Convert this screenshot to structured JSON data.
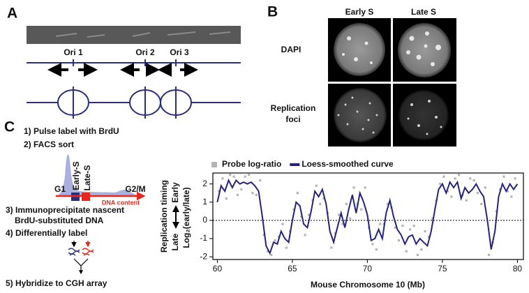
{
  "panel_a": {
    "label": "A",
    "origins": [
      "Ori 1",
      "Ori 2",
      "Ori 3"
    ]
  },
  "panel_b": {
    "label": "B",
    "columns": [
      "Early S",
      "Late S"
    ],
    "rows": [
      [
        "DAPI"
      ],
      [
        "Replication",
        "foci"
      ]
    ]
  },
  "panel_c": {
    "label": "C",
    "steps": [
      "1) Pulse label with BrdU",
      "2) FACS sort",
      "3) Immunoprecipitate nascent",
      "BrdU-substituted DNA",
      "4) Differentially label",
      "5) Hybridize to CGH array"
    ],
    "facs": {
      "phases": [
        "G1",
        "Early-S",
        "Late-S",
        "G2/M"
      ],
      "axis_label": "DNA content"
    }
  },
  "chart_data": {
    "type": "line",
    "x_label": "Mouse Chromosome 10 (Mb)",
    "y_label": "Replication timing",
    "y_label_ends": [
      "Late",
      "Early"
    ],
    "y_sublabel": "Log₂(early/late)",
    "xlim": [
      59.7,
      80.4
    ],
    "xticks": [
      60,
      65,
      70,
      75,
      80
    ],
    "ylim": [
      -2.15,
      2.6
    ],
    "yticks": [
      -2,
      -1,
      0,
      1,
      2
    ],
    "reference_line": 0,
    "legend": "top",
    "series": [
      {
        "name": "Probe log-ratio",
        "type": "scatter",
        "color": "#b4b4b4",
        "x": [
          60.1,
          60.6,
          61.1,
          61.6,
          62.1,
          62.6,
          63.1,
          63.6,
          64.1,
          64.6,
          65.1,
          65.6,
          66.1,
          66.6,
          67.1,
          67.6,
          68.1,
          68.6,
          69.1,
          69.6,
          70.1,
          70.6,
          71.1,
          71.6,
          72.1,
          72.6,
          73.1,
          73.6,
          74.1,
          74.6,
          75.1,
          75.6,
          76.1,
          76.6,
          77.1,
          77.6,
          78.1,
          78.6,
          79.1,
          79.6,
          60.35,
          60.85,
          61.35,
          61.85,
          62.35,
          62.85,
          63.35,
          63.85,
          64.35,
          64.85,
          65.35,
          65.85,
          66.35,
          66.85,
          67.35,
          67.85,
          68.35,
          68.85,
          69.35,
          69.85,
          70.35,
          70.85,
          71.35,
          71.85,
          72.35,
          72.85,
          73.35,
          73.85,
          74.35,
          74.85,
          75.35,
          75.85,
          76.35,
          76.85,
          77.35,
          77.85,
          78.35,
          78.85,
          79.35,
          79.85
        ],
        "values": [
          1.6,
          1.2,
          2.4,
          1.7,
          2.5,
          1.4,
          -0.8,
          -1.9,
          -0.9,
          -1.5,
          0.6,
          0.2,
          0.3,
          1.9,
          1.2,
          -1.5,
          0.3,
          0.9,
          1.8,
          0.6,
          -0.4,
          -1.6,
          -0.2,
          0.7,
          -1.1,
          -1.7,
          -0.3,
          -1.6,
          -0.9,
          1.1,
          2.4,
          1.3,
          2.5,
          1.1,
          2.2,
          0.9,
          -1.9,
          0.5,
          2.4,
          1.3,
          2.3,
          2.5,
          1.4,
          2.4,
          1.5,
          2.2,
          -1.7,
          -1.1,
          -0.2,
          -0.6,
          1.5,
          -0.8,
          1.1,
          0.9,
          0.4,
          -0.7,
          -0.2,
          0.1,
          0.9,
          1.8,
          -1.3,
          -0.2,
          0.9,
          -0.4,
          -0.3,
          -0.5,
          -1.9,
          -0.6,
          0.1,
          2.0,
          1.6,
          2.3,
          1.4,
          2.3,
          1.5,
          1.8,
          -1.2,
          1.7,
          1.6,
          2.3
        ]
      },
      {
        "name": "Loess-smoothed curve",
        "type": "line",
        "color": "#23237e",
        "x": [
          60,
          60.25,
          60.5,
          60.75,
          61,
          61.25,
          61.5,
          61.75,
          62,
          62.25,
          62.5,
          62.75,
          63,
          63.25,
          63.5,
          63.75,
          64,
          64.25,
          64.5,
          64.75,
          65,
          65.25,
          65.5,
          65.75,
          66,
          66.25,
          66.5,
          66.75,
          67,
          67.25,
          67.5,
          67.75,
          68,
          68.25,
          68.5,
          68.75,
          69,
          69.25,
          69.5,
          69.75,
          70,
          70.25,
          70.5,
          70.75,
          71,
          71.25,
          71.5,
          71.75,
          72,
          72.25,
          72.5,
          72.75,
          73,
          73.25,
          73.5,
          73.75,
          74,
          74.25,
          74.5,
          74.75,
          75,
          75.25,
          75.5,
          75.75,
          76,
          76.25,
          76.5,
          76.75,
          77,
          77.25,
          77.5,
          77.75,
          78,
          78.25,
          78.5,
          78.75,
          79,
          79.25,
          79.5,
          79.75,
          80
        ],
        "values": [
          1.0,
          1.9,
          1.6,
          2.2,
          1.8,
          2.2,
          2.0,
          2.1,
          2.0,
          2.1,
          1.9,
          1.6,
          0.2,
          -1.4,
          -1.8,
          -1.2,
          -1.3,
          -0.6,
          -1.0,
          -1.2,
          0.0,
          1.0,
          0.8,
          -0.2,
          -0.4,
          0.5,
          1.6,
          1.3,
          1.7,
          0.9,
          -0.6,
          -1.2,
          -0.4,
          0.4,
          -0.4,
          0.6,
          1.4,
          0.4,
          1.5,
          1.0,
          0.3,
          -1.1,
          -1.0,
          -0.5,
          -1.0,
          0.4,
          1.1,
          0.2,
          -0.5,
          -0.8,
          -1.3,
          -0.9,
          -0.8,
          -1.3,
          -1.0,
          -1.2,
          -1.4,
          -0.6,
          0.6,
          1.7,
          2.0,
          1.5,
          2.1,
          1.8,
          2.1,
          1.2,
          1.8,
          1.5,
          1.7,
          2.0,
          1.6,
          1.3,
          0.0,
          -1.6,
          -0.6,
          1.3,
          2.0,
          1.6,
          2.0,
          1.7,
          2.0
        ]
      }
    ]
  }
}
